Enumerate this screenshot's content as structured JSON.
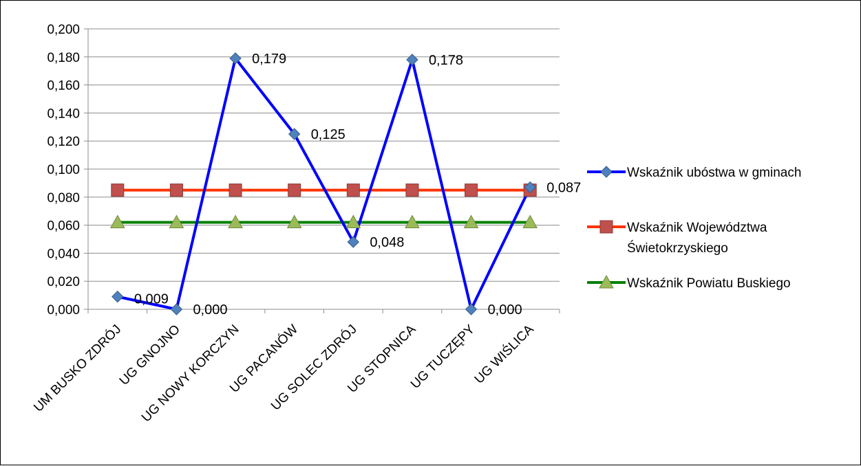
{
  "chart_data": {
    "type": "line",
    "title": "",
    "xlabel": "",
    "ylabel": "",
    "categories": [
      "UM BUSKO ZDRÓJ",
      "UG GNOJNO",
      "UG NOWY KORCZYN",
      "UG PACANÓW",
      "UG SOLEC ZDRÓJ",
      "UG STOPNICA",
      "UG TUCZĘPY",
      "UG WIŚLICA"
    ],
    "ylim": [
      0,
      0.2
    ],
    "yticks": [
      "0,000",
      "0,020",
      "0,040",
      "0,060",
      "0,080",
      "0,100",
      "0,120",
      "0,140",
      "0,160",
      "0,180",
      "0,200"
    ],
    "grid": true,
    "legend_position": "right",
    "series": [
      {
        "name": "Wskaźnik ubóstwa w gminach",
        "color": "#0000ff",
        "marker": "diamond",
        "marker_color": "#4f81bd",
        "values": [
          0.009,
          0.0,
          0.179,
          0.125,
          0.048,
          0.178,
          0.0,
          0.087
        ],
        "data_labels": [
          "0,009",
          "0,000",
          "0,179",
          "0,125",
          "0,048",
          "0,178",
          "0,000",
          "0,087"
        ]
      },
      {
        "name_lines": [
          "Wskaźnik Województwa",
          "Świetokrzyskiego"
        ],
        "color": "#ff3300",
        "marker": "square",
        "marker_color": "#c0504d",
        "values": [
          0.085,
          0.085,
          0.085,
          0.085,
          0.085,
          0.085,
          0.085,
          0.085
        ]
      },
      {
        "name": "Wskaźnik Powiatu Buskiego",
        "color": "#008000",
        "marker": "triangle",
        "marker_color": "#9bbb59",
        "values": [
          0.062,
          0.062,
          0.062,
          0.062,
          0.062,
          0.062,
          0.062,
          0.062
        ]
      }
    ]
  }
}
